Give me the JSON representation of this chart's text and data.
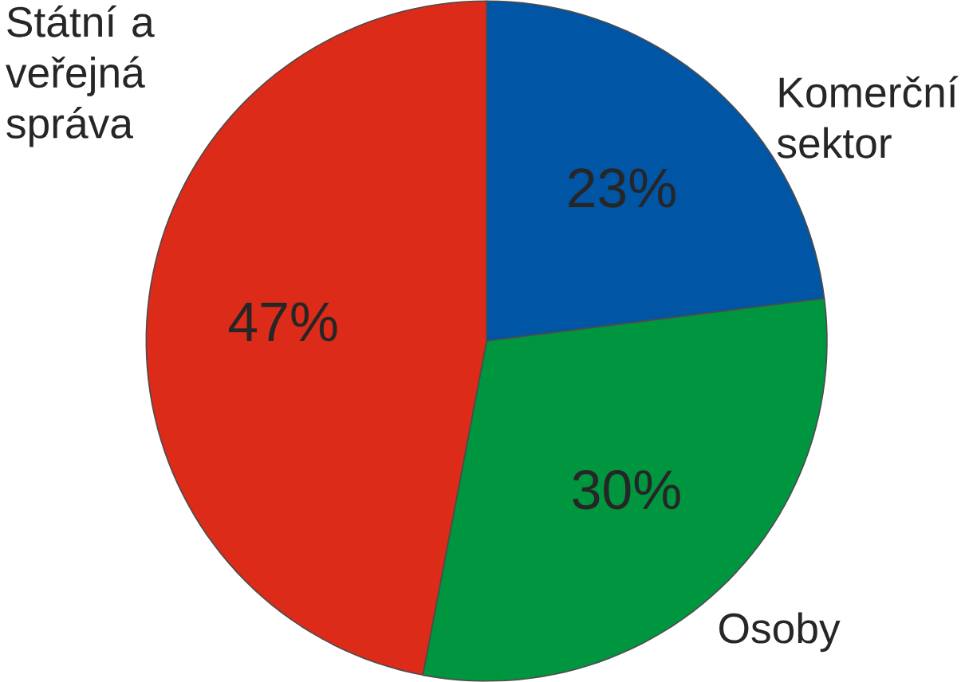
{
  "chart_data": {
    "type": "pie",
    "categories": [
      "Komerční sektor",
      "Osoby",
      "Státní a veřejná správa"
    ],
    "values": [
      23,
      30,
      47
    ],
    "colors": [
      "#0055a4",
      "#00963f",
      "#dc2b19"
    ],
    "value_labels": [
      "23%",
      "30%",
      "47%"
    ]
  }
}
